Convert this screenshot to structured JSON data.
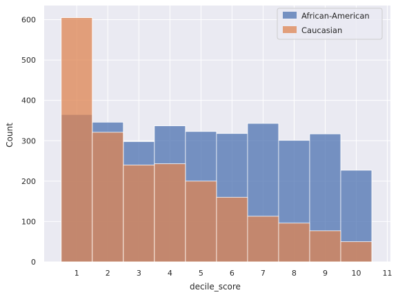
{
  "chart_data": {
    "type": "bar",
    "subtype": "overlapping histogram",
    "xlabel": "decile_score",
    "ylabel": "Count",
    "xlim": [
      -0.05,
      11.1
    ],
    "ylim": [
      0,
      635
    ],
    "x_ticks": [
      1,
      2,
      3,
      4,
      5,
      6,
      7,
      8,
      9,
      10,
      11
    ],
    "y_ticks": [
      0,
      100,
      200,
      300,
      400,
      500,
      600
    ],
    "bin_edges": [
      0.5,
      1.5,
      2.5,
      3.5,
      4.5,
      5.5,
      6.5,
      7.5,
      8.5,
      9.5,
      10.5
    ],
    "categories": [
      "1",
      "2",
      "3",
      "4",
      "5",
      "6",
      "7",
      "8",
      "9",
      "10"
    ],
    "series": [
      {
        "name": "African-American",
        "color": "#4c72b0",
        "values": [
          365,
          346,
          298,
          337,
          323,
          318,
          343,
          301,
          317,
          227
        ]
      },
      {
        "name": "Caucasian",
        "color": "#dd8452",
        "values": [
          605,
          321,
          240,
          243,
          200,
          160,
          113,
          96,
          77,
          50
        ]
      }
    ],
    "grid": true,
    "legend_position": "top-right"
  }
}
